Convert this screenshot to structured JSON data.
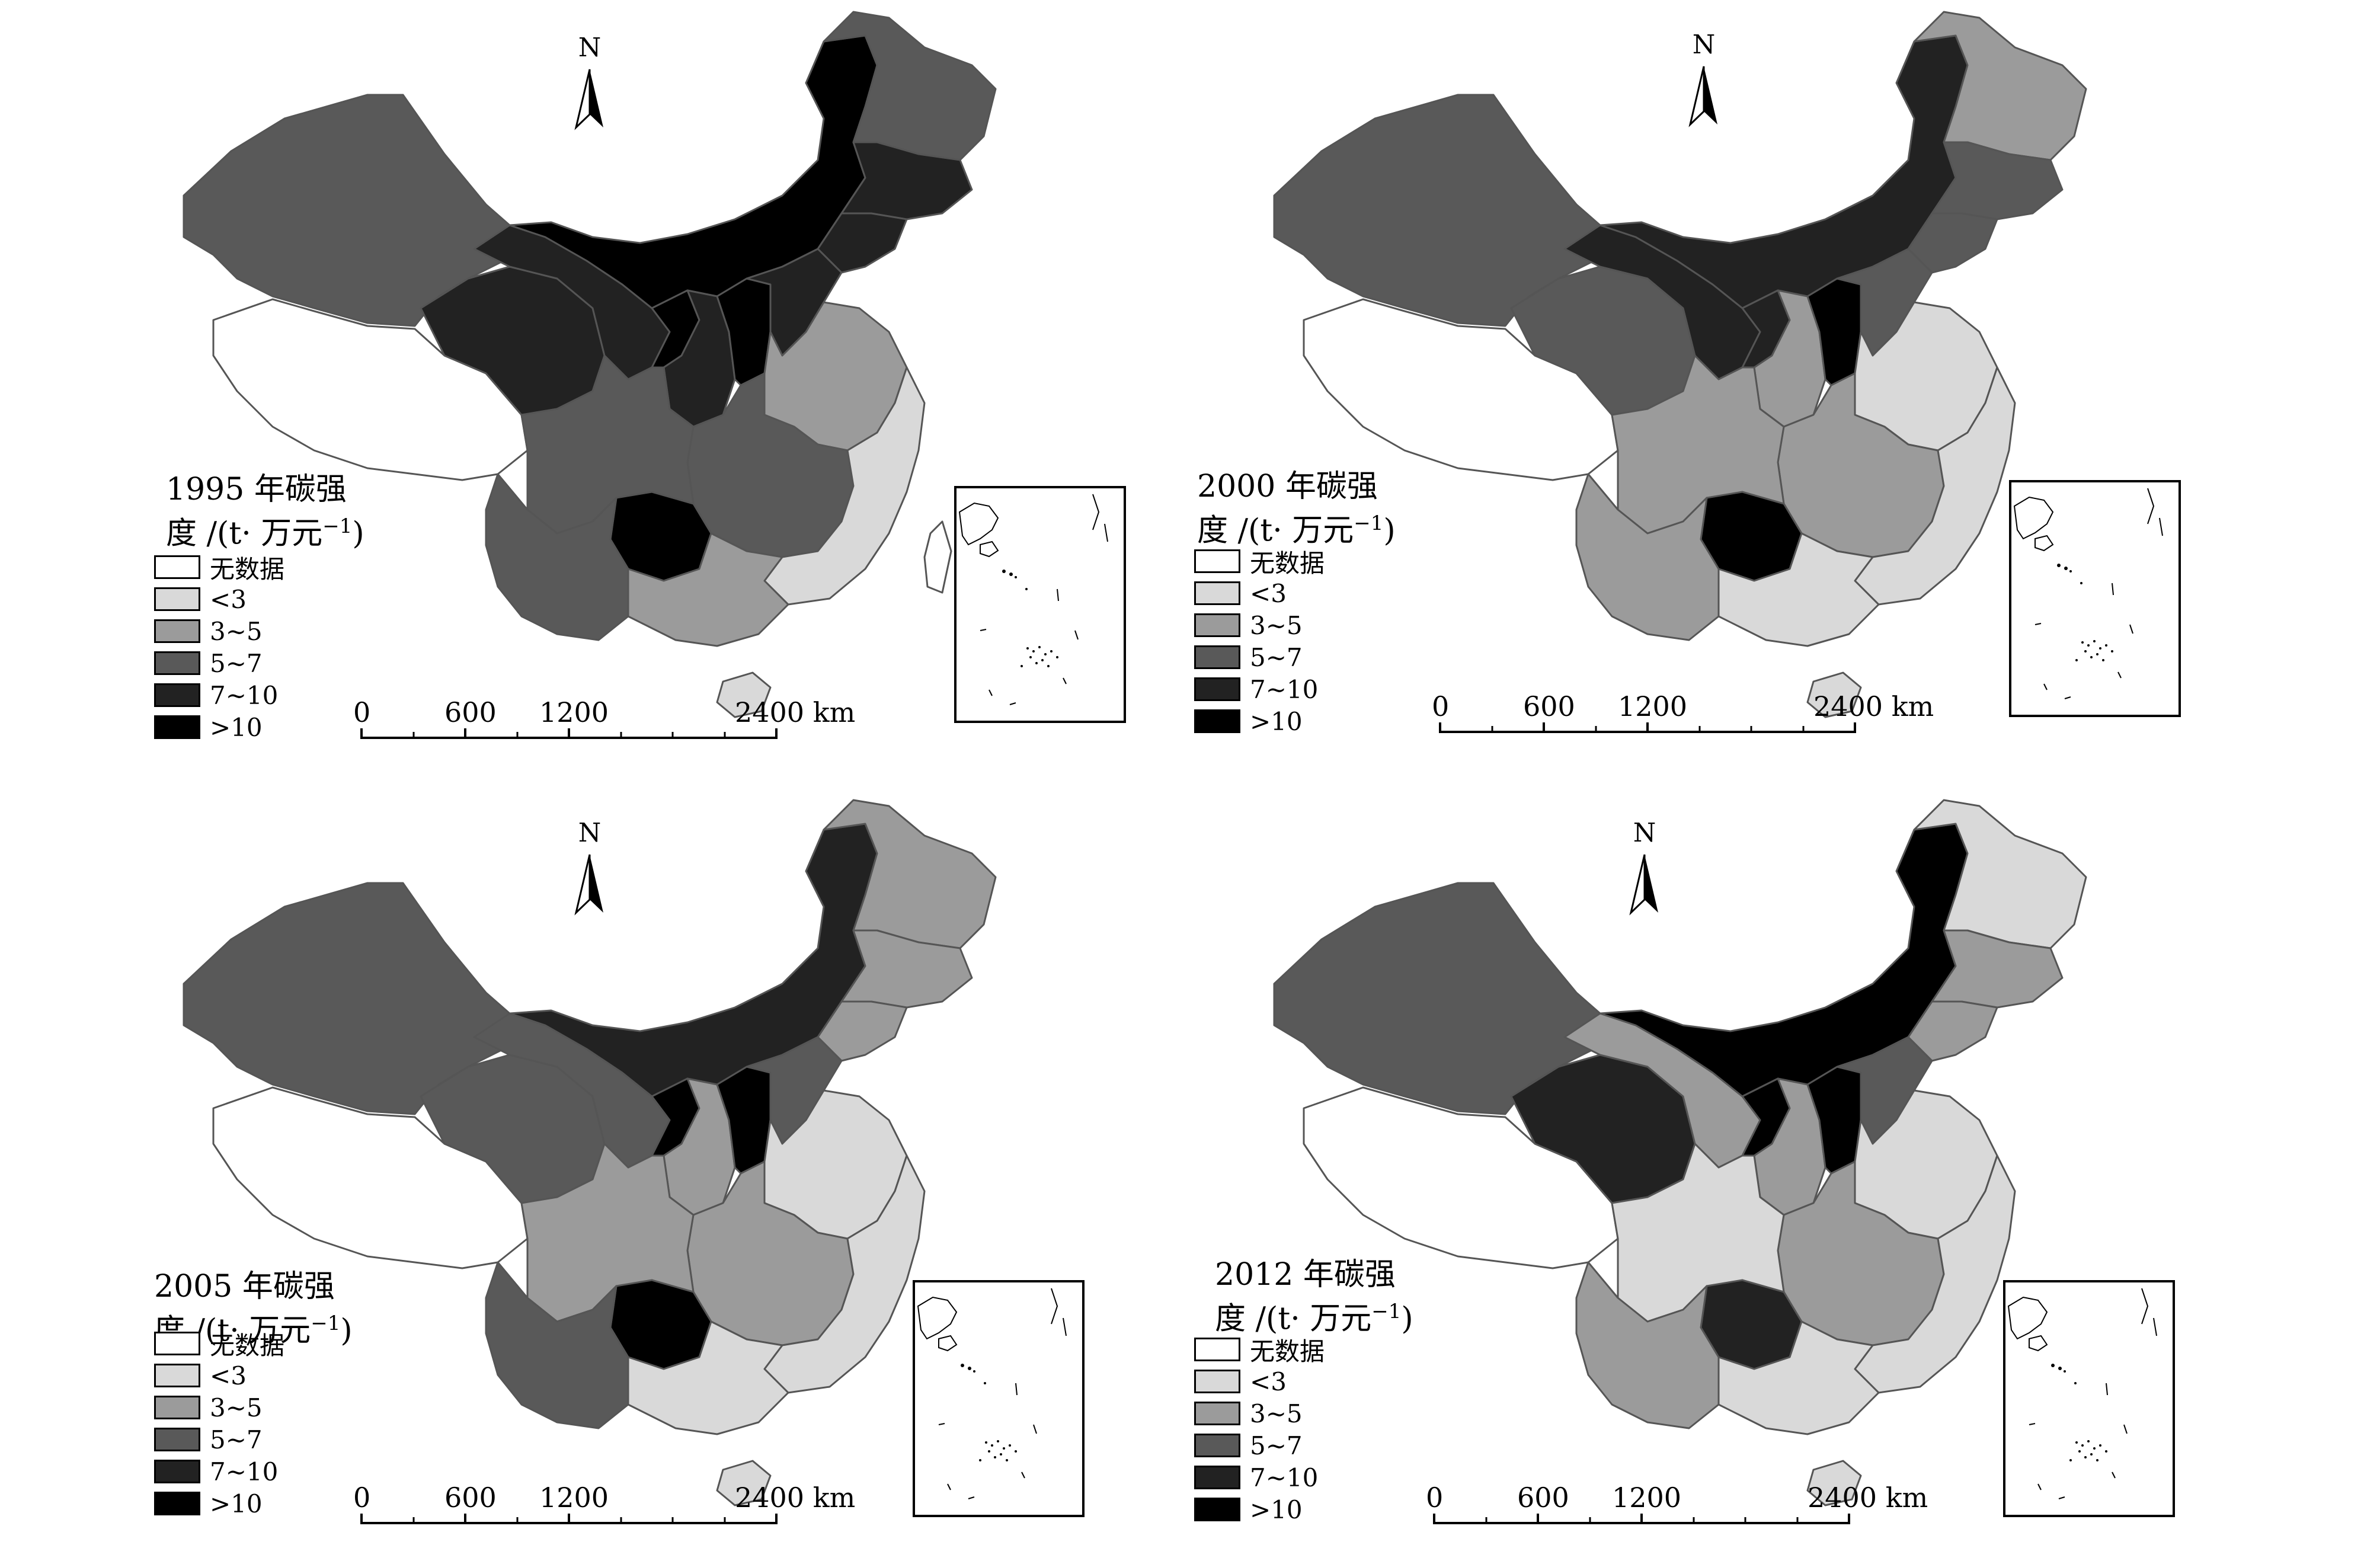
{
  "legend": {
    "unit_line": "度 /(t· 万元",
    "unit_exp": "−1",
    "unit_close": ")",
    "items": [
      {
        "label": "无数据",
        "color": "#ffffff"
      },
      {
        "label": "<3",
        "color": "#d9d9d9"
      },
      {
        "label": "3~5",
        "color": "#9b9b9b"
      },
      {
        "label": "5~7",
        "color": "#595959"
      },
      {
        "label": "7~10",
        "color": "#222222"
      },
      {
        "label": ">10",
        "color": "#000000"
      }
    ]
  },
  "north_label": "N",
  "scale_labels": [
    "0",
    "600",
    "1200",
    "2400 km"
  ],
  "panels": [
    {
      "title": "1995 年碳强",
      "classes": {
        "northeast": 3,
        "heilongjiang": 3,
        "jilin": 4,
        "liaoning": 4,
        "inner_mongolia": 5,
        "xinjiang": 3,
        "tibet": 0,
        "qinghai": 4,
        "gansu": 4,
        "ningxia": 5,
        "shaanxi": 4,
        "shanxi": 5,
        "hebei": 4,
        "north_china_plain": 2,
        "southwest": 3,
        "guizhou": 5,
        "central": 3,
        "southeast": 1,
        "guangxi": 2,
        "yunnan": 3,
        "hainan": 1,
        "taiwan": 0
      }
    },
    {
      "title": "2000 年碳强",
      "classes": {
        "northeast": 2,
        "heilongjiang": 2,
        "jilin": 3,
        "liaoning": 3,
        "inner_mongolia": 4,
        "xinjiang": 3,
        "tibet": 0,
        "qinghai": 3,
        "gansu": 4,
        "ningxia": 4,
        "shaanxi": 2,
        "shanxi": 5,
        "hebei": 3,
        "north_china_plain": 1,
        "southwest": 2,
        "guizhou": 5,
        "central": 2,
        "southeast": 1,
        "guangxi": 1,
        "yunnan": 2,
        "hainan": 1,
        "taiwan": 0
      }
    },
    {
      "title": "2005 年碳强",
      "classes": {
        "northeast": 2,
        "heilongjiang": 2,
        "jilin": 2,
        "liaoning": 2,
        "inner_mongolia": 4,
        "xinjiang": 3,
        "tibet": 0,
        "qinghai": 3,
        "gansu": 3,
        "ningxia": 5,
        "shaanxi": 2,
        "shanxi": 5,
        "hebei": 3,
        "north_china_plain": 1,
        "southwest": 2,
        "guizhou": 5,
        "central": 2,
        "southeast": 1,
        "guangxi": 1,
        "yunnan": 3,
        "hainan": 1,
        "taiwan": 0
      }
    },
    {
      "title": "2012 年碳强",
      "classes": {
        "northeast": 1,
        "heilongjiang": 1,
        "jilin": 2,
        "liaoning": 2,
        "inner_mongolia": 5,
        "xinjiang": 3,
        "tibet": 0,
        "qinghai": 4,
        "gansu": 2,
        "ningxia": 5,
        "shaanxi": 2,
        "shanxi": 5,
        "hebei": 3,
        "north_china_plain": 1,
        "southwest": 1,
        "guizhou": 4,
        "central": 2,
        "southeast": 1,
        "guangxi": 1,
        "yunnan": 2,
        "hainan": 1,
        "taiwan": 0
      }
    }
  ]
}
